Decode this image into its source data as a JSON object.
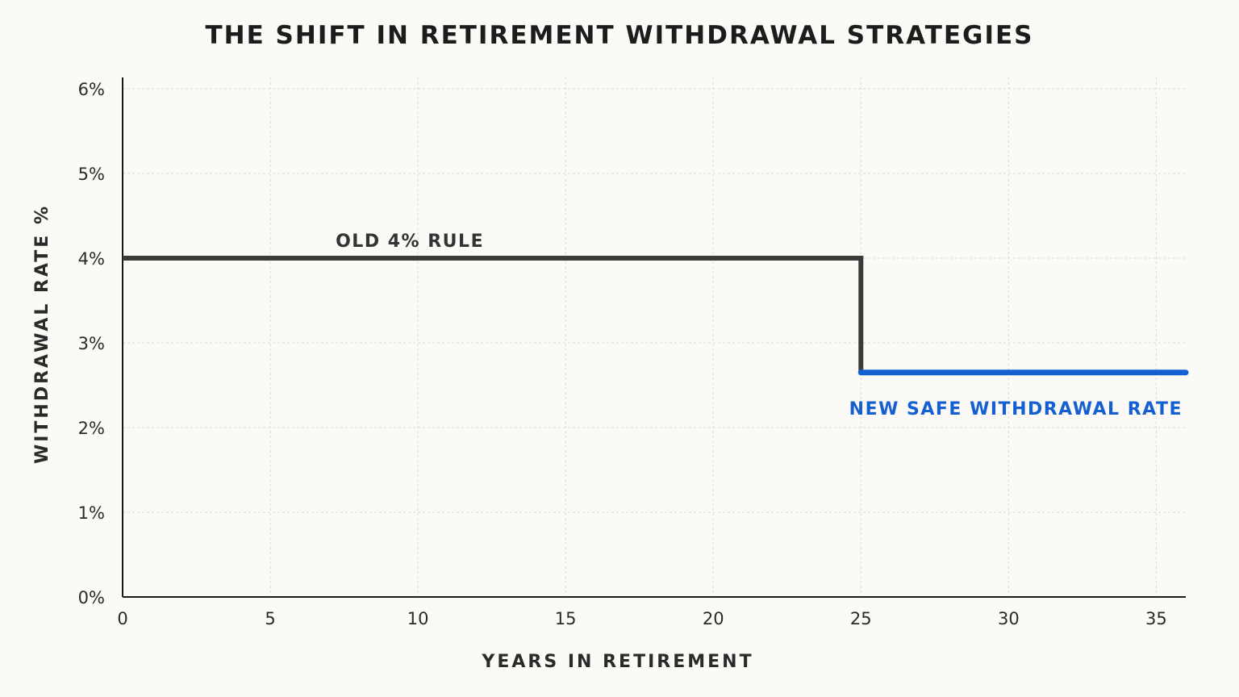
{
  "chart_data": {
    "type": "line",
    "title": "THE SHIFT IN RETIREMENT WITHDRAWAL STRATEGIES",
    "xlabel": "YEARS IN RETIREMENT",
    "ylabel": "WITHDRAWAL RATE %",
    "xlim": [
      0,
      36
    ],
    "ylim": [
      0,
      6
    ],
    "x_ticks": [
      0,
      5,
      10,
      15,
      20,
      25,
      30,
      35
    ],
    "x_tick_labels": [
      "0",
      "5",
      "10",
      "15",
      "20",
      "25",
      "30",
      "35"
    ],
    "y_ticks": [
      0,
      1,
      2,
      3,
      4,
      5,
      6
    ],
    "y_tick_labels": [
      "0%",
      "1%",
      "2%",
      "3%",
      "4%",
      "5%",
      "6%"
    ],
    "grid": true,
    "legend": "none",
    "series": [
      {
        "name": "OLD 4% RULE",
        "color": "#3a3a3a",
        "x": [
          0,
          25,
          25
        ],
        "y": [
          4.0,
          4.0,
          2.65
        ]
      },
      {
        "name": "NEW SAFE WITHDRAWAL RATE",
        "color": "#1460d2",
        "x": [
          25,
          36
        ],
        "y": [
          2.65,
          2.65
        ]
      }
    ],
    "annotations": [
      {
        "text": "OLD 4% RULE",
        "series": 0,
        "x": 10,
        "y": 4.0,
        "placement": "above"
      },
      {
        "text": "NEW SAFE WITHDRAWAL RATE",
        "series": 1,
        "x": 36,
        "y": 2.65,
        "placement": "below-right"
      }
    ]
  }
}
